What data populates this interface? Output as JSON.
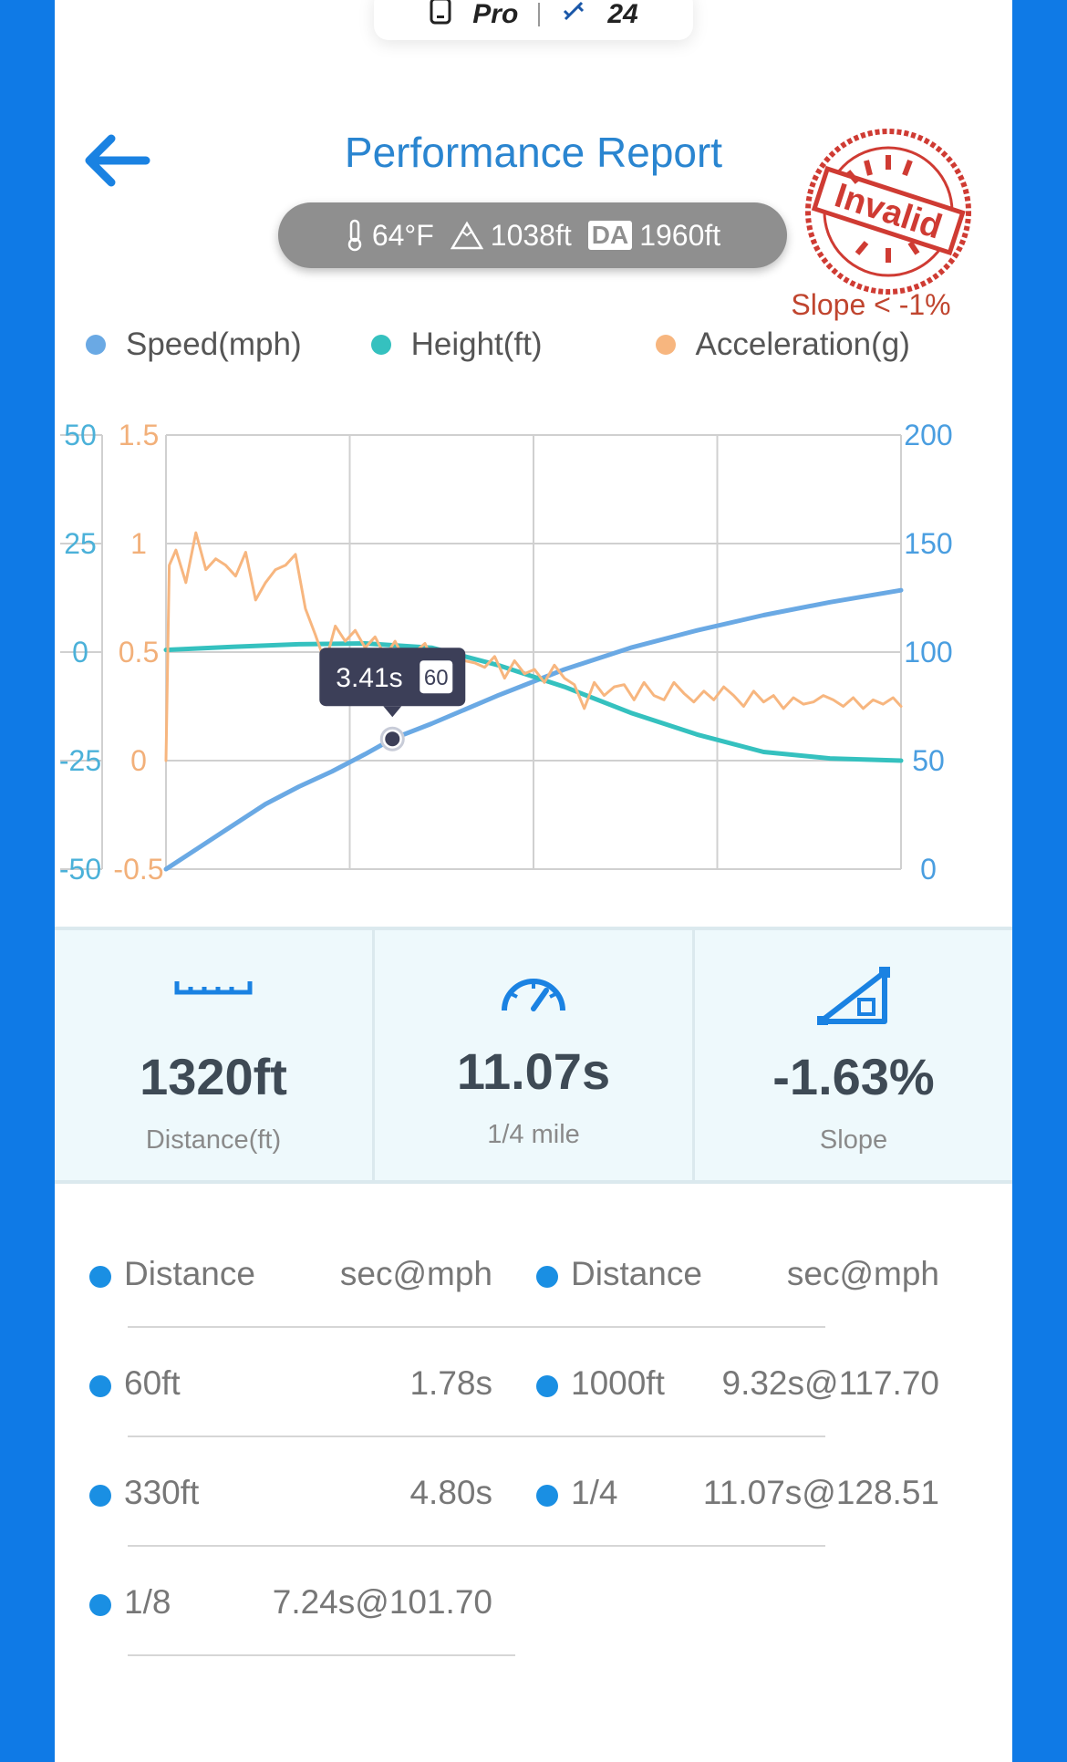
{
  "device_pill": {
    "model": "Pro",
    "satellites": "24"
  },
  "header": {
    "title": "Performance Report"
  },
  "environment": {
    "temperature": "64°F",
    "altitude": "1038ft",
    "da_label": "DA",
    "density_altitude": "1960ft"
  },
  "stamp": {
    "text": "Invalid",
    "warning": "Slope < -1%"
  },
  "legend": [
    {
      "label": "Speed(mph)",
      "color": "#6aa9e4"
    },
    {
      "label": "Height(ft)",
      "color": "#35c1bf"
    },
    {
      "label": "Acceleration(g)",
      "color": "#f7b67f"
    }
  ],
  "chart_data": {
    "type": "line",
    "axes": {
      "left_height": {
        "ticks": [
          "50",
          "25",
          "0",
          "-25",
          "-50"
        ],
        "range": [
          -50,
          50
        ]
      },
      "left_accel": {
        "ticks": [
          "1.5",
          "1",
          "0.5",
          "0",
          "-0.5"
        ],
        "range": [
          -0.5,
          1.5
        ]
      },
      "right_speed": {
        "ticks": [
          "200",
          "150",
          "100",
          "50",
          "0"
        ],
        "range": [
          0,
          200
        ]
      },
      "x_range": [
        0,
        11.07
      ]
    },
    "series": [
      {
        "name": "Speed(mph)",
        "color": "#6aa9e4",
        "axis": "right_speed",
        "x": [
          0,
          0.5,
          1,
          1.5,
          2,
          2.5,
          3,
          3.41,
          4,
          5,
          6,
          7,
          8,
          9,
          10,
          11.07
        ],
        "y": [
          0,
          10,
          20,
          30,
          38,
          45,
          53,
          60,
          67,
          80,
          92,
          102,
          110,
          117,
          123,
          128.5
        ]
      },
      {
        "name": "Height(ft)",
        "color": "#35c1bf",
        "axis": "left_height",
        "x": [
          0,
          1,
          2,
          3,
          4,
          5,
          6,
          7,
          8,
          9,
          10,
          11.07
        ],
        "y": [
          0.5,
          1.2,
          1.8,
          2,
          1,
          -3,
          -8,
          -14,
          -19,
          -23,
          -24.5,
          -25
        ]
      },
      {
        "name": "Acceleration(g)",
        "color": "#f7b67f",
        "axis": "left_accel",
        "x": [
          0,
          0.05,
          0.15,
          0.3,
          0.45,
          0.6,
          0.75,
          0.9,
          1.05,
          1.2,
          1.35,
          1.5,
          1.65,
          1.8,
          1.95,
          2.1,
          2.25,
          2.4,
          2.55,
          2.7,
          2.85,
          3.0,
          3.15,
          3.3,
          3.45,
          3.6,
          3.75,
          3.9,
          4.05,
          4.2,
          4.35,
          4.5,
          4.65,
          4.8,
          4.95,
          5.1,
          5.25,
          5.4,
          5.55,
          5.7,
          5.85,
          6.0,
          6.15,
          6.3,
          6.45,
          6.6,
          6.75,
          6.9,
          7.05,
          7.2,
          7.35,
          7.5,
          7.65,
          7.8,
          7.95,
          8.1,
          8.25,
          8.4,
          8.55,
          8.7,
          8.85,
          9.0,
          9.15,
          9.3,
          9.45,
          9.6,
          9.75,
          9.9,
          10.05,
          10.2,
          10.35,
          10.5,
          10.65,
          10.8,
          10.95,
          11.07
        ],
        "y": [
          0,
          0.9,
          0.97,
          0.82,
          1.05,
          0.88,
          0.93,
          0.9,
          0.85,
          0.96,
          0.74,
          0.82,
          0.88,
          0.9,
          0.95,
          0.7,
          0.58,
          0.45,
          0.62,
          0.55,
          0.6,
          0.52,
          0.57,
          0.48,
          0.55,
          0.46,
          0.5,
          0.54,
          0.44,
          0.48,
          0.47,
          0.46,
          0.45,
          0.43,
          0.48,
          0.38,
          0.46,
          0.4,
          0.42,
          0.36,
          0.44,
          0.38,
          0.35,
          0.24,
          0.36,
          0.3,
          0.34,
          0.35,
          0.28,
          0.36,
          0.3,
          0.28,
          0.36,
          0.31,
          0.27,
          0.32,
          0.28,
          0.34,
          0.3,
          0.25,
          0.32,
          0.27,
          0.3,
          0.24,
          0.29,
          0.26,
          0.27,
          0.3,
          0.28,
          0.25,
          0.29,
          0.24,
          0.28,
          0.26,
          0.29,
          0.25
        ]
      }
    ],
    "tooltip": {
      "time": "3.41s",
      "speed": "60",
      "x": 3.41,
      "y": 60
    }
  },
  "stats": [
    {
      "value": "1320ft",
      "label": "Distance(ft)",
      "icon": "ruler-icon"
    },
    {
      "value": "11.07s",
      "label": "1/4 mile",
      "icon": "speedometer-icon"
    },
    {
      "value": "-1.63%",
      "label": "Slope",
      "icon": "slope-icon"
    }
  ],
  "splits": {
    "left": [
      {
        "key": "Distance",
        "value": "sec@mph"
      },
      {
        "key": "60ft",
        "value": "1.78s"
      },
      {
        "key": "330ft",
        "value": "4.80s"
      },
      {
        "key": "1/8",
        "value": "7.24s@101.70"
      }
    ],
    "right": [
      {
        "key": "Distance",
        "value": "sec@mph"
      },
      {
        "key": "1000ft",
        "value": "9.32s@117.70"
      },
      {
        "key": "1/4",
        "value": "11.07s@128.51"
      }
    ]
  }
}
